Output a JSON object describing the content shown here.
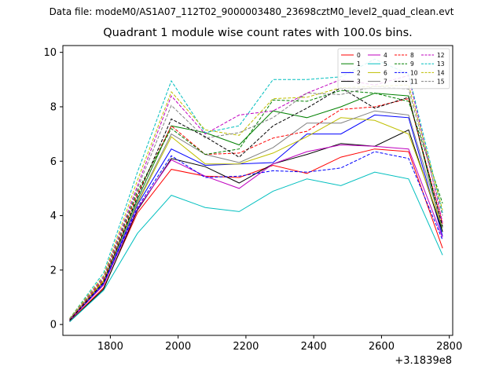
{
  "header": {
    "data_file": "Data file: modeM0/AS1A07_112T02_9000003480_23698cztM0_level2_quad_clean.evt"
  },
  "chart_data": {
    "type": "line",
    "title": "Quadrant 1 module wise count rates with 100.0s bins.",
    "xlabel": "",
    "ylabel": "",
    "x_offset_label": "+3.1839e8",
    "x": [
      1680,
      1780,
      1880,
      1980,
      2080,
      2180,
      2280,
      2380,
      2480,
      2580,
      2680,
      2780
    ],
    "xlim": [
      1660,
      2810
    ],
    "ylim": [
      -0.4,
      10.25
    ],
    "xticks": [
      1800,
      2000,
      2200,
      2400,
      2600,
      2800
    ],
    "yticks": [
      0,
      2,
      4,
      6,
      8,
      10
    ],
    "grid": false,
    "legend_position": "top-right",
    "legend_columns": 4,
    "series": [
      {
        "name": "0",
        "color": "#ff0000",
        "dash": "solid",
        "values": [
          0.12,
          1.35,
          4.1,
          5.7,
          5.45,
          5.4,
          5.85,
          5.55,
          6.15,
          6.45,
          6.35,
          2.8
        ]
      },
      {
        "name": "1",
        "color": "#008000",
        "dash": "solid",
        "values": [
          0.2,
          1.6,
          4.6,
          7.3,
          7.05,
          6.6,
          7.85,
          7.6,
          8.0,
          8.5,
          8.4,
          3.4
        ]
      },
      {
        "name": "2",
        "color": "#0000ff",
        "dash": "solid",
        "values": [
          0.15,
          1.5,
          4.4,
          6.45,
          5.85,
          5.9,
          5.95,
          7.0,
          7.0,
          7.7,
          7.6,
          3.25
        ]
      },
      {
        "name": "3",
        "color": "#000000",
        "dash": "solid",
        "values": [
          0.1,
          1.3,
          4.2,
          6.1,
          5.8,
          5.2,
          5.9,
          6.25,
          6.65,
          6.55,
          7.15,
          3.4
        ]
      },
      {
        "name": "4",
        "color": "#bf00bf",
        "dash": "solid",
        "values": [
          0.15,
          1.45,
          4.25,
          6.05,
          5.45,
          5.0,
          5.9,
          6.35,
          6.6,
          6.55,
          6.45,
          3.2
        ]
      },
      {
        "name": "5",
        "color": "#00bfbf",
        "dash": "solid",
        "values": [
          0.1,
          1.25,
          3.35,
          4.75,
          4.3,
          4.15,
          4.9,
          5.35,
          5.1,
          5.6,
          5.35,
          2.55
        ]
      },
      {
        "name": "6",
        "color": "#bfbf00",
        "dash": "solid",
        "values": [
          0.2,
          1.6,
          4.45,
          6.9,
          5.9,
          5.9,
          6.3,
          6.9,
          7.6,
          7.5,
          7.0,
          3.55
        ]
      },
      {
        "name": "7",
        "color": "#808080",
        "dash": "solid",
        "values": [
          0.2,
          1.55,
          4.5,
          7.0,
          6.25,
          5.95,
          6.5,
          7.4,
          7.4,
          7.85,
          7.7,
          3.55
        ]
      },
      {
        "name": "8",
        "color": "#ff0000",
        "dash": "dashed",
        "values": [
          0.18,
          1.65,
          4.8,
          7.3,
          6.25,
          6.3,
          6.85,
          7.1,
          7.9,
          8.0,
          8.3,
          3.7
        ]
      },
      {
        "name": "9",
        "color": "#008000",
        "dash": "dashed",
        "values": [
          0.2,
          1.7,
          4.9,
          7.2,
          6.25,
          6.45,
          8.25,
          8.2,
          8.6,
          8.5,
          8.2,
          4.45
        ]
      },
      {
        "name": "10",
        "color": "#0000ff",
        "dash": "dashed",
        "values": [
          0.15,
          1.5,
          4.3,
          6.2,
          5.4,
          5.45,
          5.65,
          5.6,
          5.75,
          6.35,
          6.1,
          3.1
        ]
      },
      {
        "name": "11",
        "color": "#000000",
        "dash": "dashed",
        "values": [
          0.15,
          1.55,
          4.7,
          7.55,
          6.9,
          6.15,
          7.3,
          7.95,
          8.7,
          7.95,
          8.35,
          3.6
        ]
      },
      {
        "name": "12",
        "color": "#bf00bf",
        "dash": "dashed",
        "values": [
          0.2,
          1.75,
          5.1,
          8.4,
          7.0,
          7.7,
          7.85,
          8.5,
          9.0,
          8.8,
          9.15,
          3.75
        ]
      },
      {
        "name": "13",
        "color": "#00bfbf",
        "dash": "dashed",
        "values": [
          0.22,
          1.9,
          5.6,
          8.95,
          7.05,
          7.3,
          9.0,
          9.0,
          9.1,
          9.75,
          9.2,
          4.1
        ]
      },
      {
        "name": "14",
        "color": "#bfbf00",
        "dash": "dashed",
        "values": [
          0.22,
          1.8,
          5.3,
          8.55,
          7.15,
          6.95,
          8.3,
          8.35,
          8.7,
          8.75,
          8.8,
          4.2
        ]
      },
      {
        "name": "15",
        "color": "#808080",
        "dash": "dashed",
        "values": [
          0.2,
          1.7,
          5.0,
          8.05,
          6.85,
          7.05,
          7.6,
          8.5,
          8.45,
          8.75,
          8.65,
          4.0
        ]
      }
    ]
  }
}
